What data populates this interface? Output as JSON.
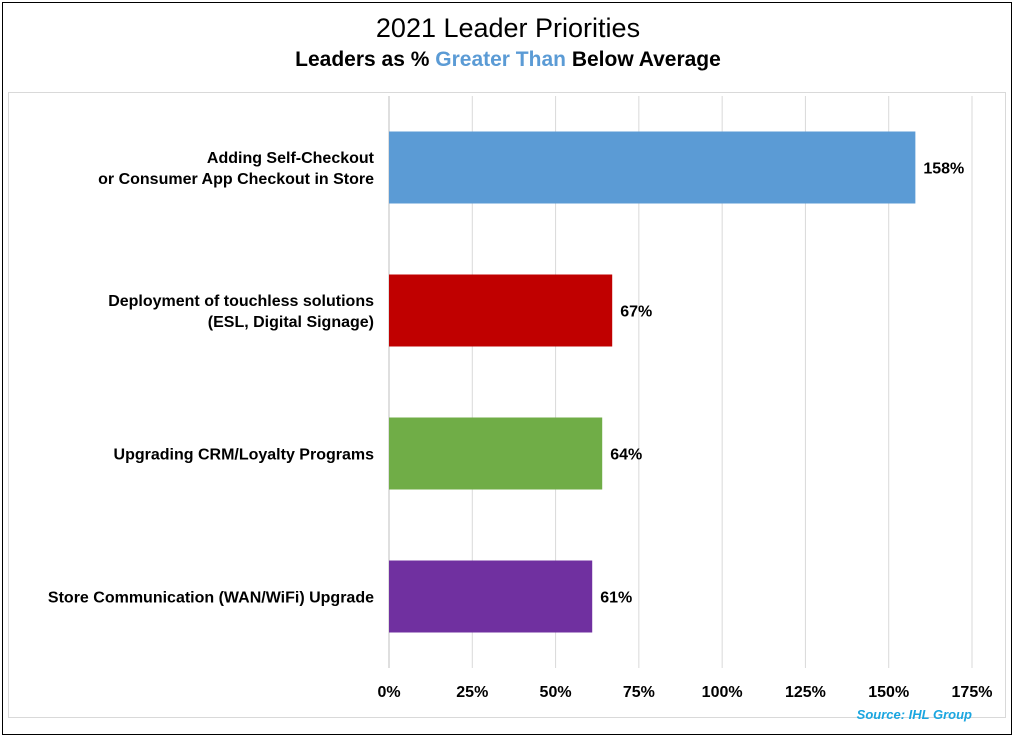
{
  "title": "2021 Leader Priorities",
  "subtitle": {
    "before": "Leaders as % ",
    "highlight": "Greater Than",
    "after": " Below Average"
  },
  "source": "Source: IHL Group",
  "colors": {
    "highlight": "#5b9bd5",
    "source": "#1aa6e0",
    "grid": "#d9d9d9"
  },
  "chart_data": {
    "type": "bar",
    "orientation": "horizontal",
    "categories": [
      [
        "Adding Self-Checkout",
        "or Consumer App Checkout in Store"
      ],
      [
        "Deployment of touchless solutions",
        "(ESL, Digital Signage)"
      ],
      [
        "Upgrading CRM/Loyalty Programs"
      ],
      [
        "Store Communication (WAN/WiFi) Upgrade"
      ]
    ],
    "values": [
      158,
      67,
      64,
      61
    ],
    "value_labels": [
      "158%",
      "67%",
      "64%",
      "61%"
    ],
    "bar_colors": [
      "#5b9bd5",
      "#c00000",
      "#70ad47",
      "#7030a0"
    ],
    "xlim": [
      0,
      175
    ],
    "xticks": [
      0,
      25,
      50,
      75,
      100,
      125,
      150,
      175
    ],
    "xtick_labels": [
      "0%",
      "25%",
      "50%",
      "75%",
      "100%",
      "125%",
      "150%",
      "175%"
    ],
    "grid": true,
    "legend": false
  }
}
